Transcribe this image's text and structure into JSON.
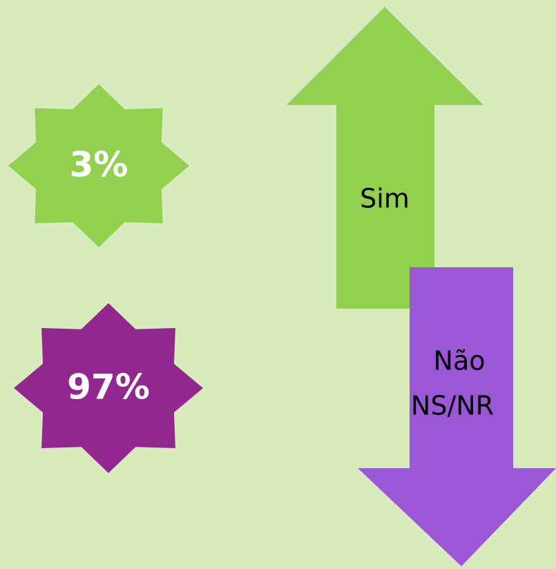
{
  "stars": [
    {
      "label": "3%"
    },
    {
      "label": "97%"
    }
  ],
  "arrows": [
    {
      "labels": [
        "Sim"
      ]
    },
    {
      "labels": [
        "Não",
        "NS/NR"
      ]
    }
  ]
}
